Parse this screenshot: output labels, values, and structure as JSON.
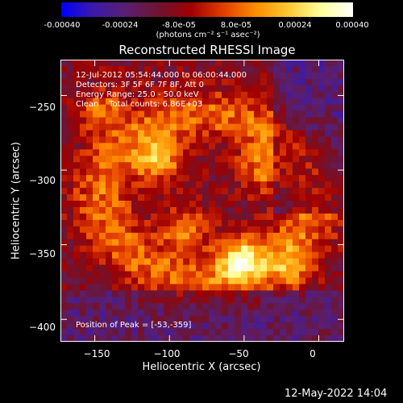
{
  "colorbar": {
    "colors": [
      "#0000ff",
      "#3c1aa8",
      "#5a1f6e",
      "#6e1430",
      "#a00000",
      "#e23d00",
      "#ff8c00",
      "#ffc830",
      "#ffff9a",
      "#ffffff"
    ],
    "labels": [
      "-0.00040",
      "-0.00024",
      "-8.0e-05",
      "8.0e-05",
      "0.00024",
      "0.00040"
    ],
    "units": "(photons cm⁻² s⁻¹ asec⁻²)"
  },
  "title": "Reconstructed RHESSI Image",
  "info": {
    "time": "12-Jul-2012 05:54:44.000 to 06:00:44.000",
    "detectors": "Detectors: 3F 5F 6F 7F 8F, Att 0",
    "energy": "Energy Range: 25.0 - 50.0 keV",
    "clean": "Clean    Total counts: 6.86E+03"
  },
  "peak": "Position of Peak = [-53,-359]",
  "footer": "12-May-2022 14:04",
  "chart_data": {
    "type": "heatmap",
    "title": "Reconstructed RHESSI Image",
    "xlabel": "Heliocentric X (arcsec)",
    "ylabel": "Heliocentric Y (arcsec)",
    "xlim": [
      -173,
      17
    ],
    "ylim": [
      -415,
      -226
    ],
    "x_ticks": [
      -150,
      -100,
      -50,
      0
    ],
    "y_ticks": [
      -250,
      -300,
      -350,
      -400
    ],
    "x_tick_labels": [
      "−150",
      "−100",
      "−50",
      "0"
    ],
    "y_tick_labels": [
      "−250",
      "−300",
      "−350",
      "−400"
    ],
    "peak_position": [
      -53,
      -359
    ],
    "color_range": [
      -0.0004,
      0.0004
    ],
    "bright_sources": [
      {
        "x": -107,
        "y": -293,
        "value": 0.00036
      },
      {
        "x": -90,
        "y": -340,
        "value": 0.0003
      },
      {
        "x": -53,
        "y": -359,
        "value": 0.0004
      },
      {
        "x": -40,
        "y": -300,
        "value": 0.00024
      },
      {
        "x": -145,
        "y": -260,
        "value": 0.00022
      },
      {
        "x": -20,
        "y": -365,
        "value": 0.0002
      }
    ]
  }
}
